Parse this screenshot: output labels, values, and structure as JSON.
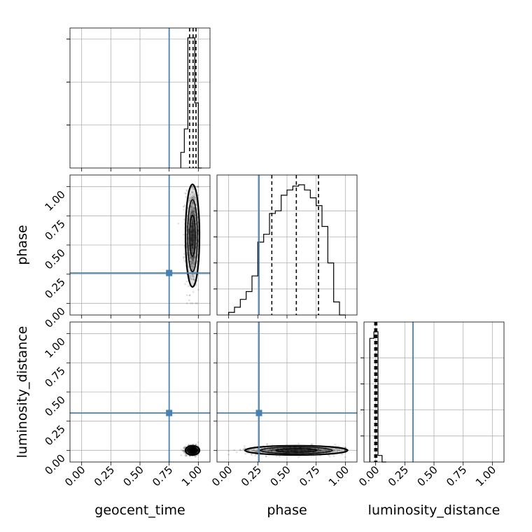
{
  "chart_data": {
    "type": "corner",
    "parameters": [
      "geocent_time",
      "phase",
      "luminosity_distance"
    ],
    "axis_labels": {
      "x": [
        "geocent_time",
        "phase",
        "luminosity_distance"
      ],
      "y": [
        "",
        "phase",
        "luminosity_distance"
      ]
    },
    "axis_range": [
      -0.1,
      1.1
    ],
    "tick_values": [
      0.0,
      0.25,
      0.5,
      0.75,
      1.0
    ],
    "tick_labels": [
      "0.00",
      "0.25",
      "0.50",
      "0.75",
      "1.00"
    ],
    "truths": {
      "geocent_time": 0.75,
      "phase": 0.26,
      "luminosity_distance": 0.32
    },
    "truth_color": "#4682b4",
    "grid": true,
    "marginals": [
      {
        "parameter": "geocent_time",
        "bin_edges": [
          0.85,
          0.88,
          0.91,
          0.94,
          0.97,
          1.0,
          1.03
        ],
        "counts": [
          0.12,
          0.3,
          1.0,
          1.0,
          0.5,
          0.0
        ],
        "quantiles": [
          0.925,
          0.955,
          0.98
        ]
      },
      {
        "parameter": "phase",
        "bin_edges": [
          0.0,
          0.05,
          0.1,
          0.15,
          0.2,
          0.25,
          0.3,
          0.35,
          0.4,
          0.45,
          0.5,
          0.55,
          0.6,
          0.65,
          0.7,
          0.75,
          0.8,
          0.85,
          0.9,
          0.95,
          1.0
        ],
        "counts": [
          0.02,
          0.06,
          0.12,
          0.18,
          0.3,
          0.56,
          0.62,
          0.78,
          0.8,
          0.92,
          0.96,
          0.99,
          1.0,
          0.96,
          0.9,
          0.84,
          0.68,
          0.4,
          0.1,
          0.0
        ],
        "quantiles": [
          0.37,
          0.58,
          0.77
        ]
      },
      {
        "parameter": "luminosity_distance",
        "bin_edges": [
          -0.05,
          -0.015,
          0.02,
          0.055,
          0.09
        ],
        "counts": [
          0.95,
          1.0,
          0.05,
          0.0
        ],
        "quantiles": [
          -0.008,
          0.0,
          0.01
        ]
      }
    ],
    "joint_panels": [
      {
        "x": "geocent_time",
        "y": "phase",
        "center": [
          0.95,
          0.58
        ],
        "spread": [
          0.03,
          0.22
        ]
      },
      {
        "x": "geocent_time",
        "y": "luminosity_distance",
        "center": [
          0.95,
          0.0
        ],
        "spread": [
          0.03,
          0.02
        ]
      },
      {
        "x": "phase",
        "y": "luminosity_distance",
        "center": [
          0.58,
          0.0
        ],
        "spread": [
          0.22,
          0.02
        ]
      }
    ]
  }
}
